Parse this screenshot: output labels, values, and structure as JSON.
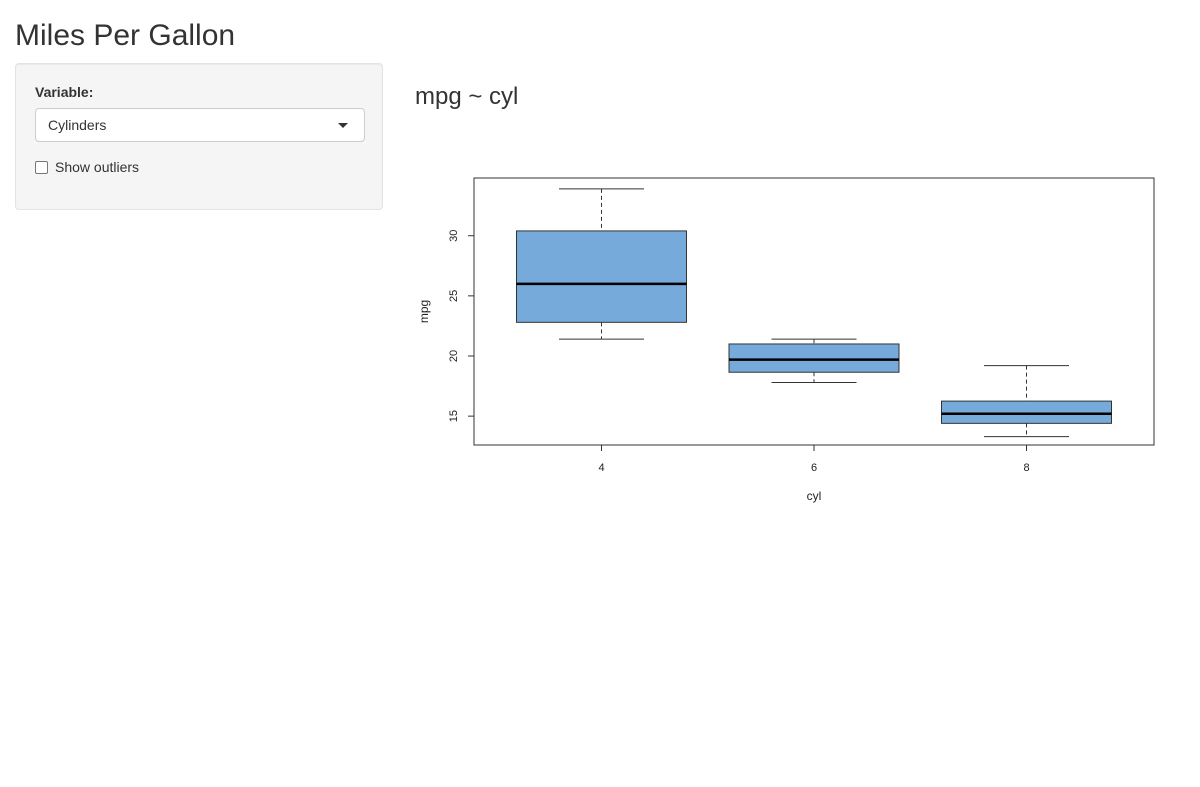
{
  "title": "Miles Per Gallon",
  "sidebar": {
    "variable_label": "Variable:",
    "variable_selected": "Cylinders",
    "outliers_label": "Show outliers",
    "outliers_checked": false
  },
  "main": {
    "caption": "mpg ~ cyl"
  },
  "colors": {
    "box_fill": "#75AADB",
    "panel_bg": "#f5f5f5",
    "text": "#333333"
  },
  "chart_data": {
    "type": "boxplot",
    "title": "",
    "xlabel": "cyl",
    "ylabel": "mpg",
    "categories": [
      "4",
      "6",
      "8"
    ],
    "yticks": [
      15,
      20,
      25,
      30
    ],
    "ylim": [
      12.6,
      34.8
    ],
    "boxes": [
      {
        "category": "4",
        "min": 21.4,
        "q1": 22.8,
        "median": 26.0,
        "q3": 30.4,
        "max": 33.9
      },
      {
        "category": "6",
        "min": 17.8,
        "q1": 18.65,
        "median": 19.7,
        "q3": 21.0,
        "max": 21.4
      },
      {
        "category": "8",
        "min": 13.3,
        "q1": 14.4,
        "median": 15.2,
        "q3": 16.25,
        "max": 19.2
      }
    ],
    "grid": false,
    "outliers_shown": false
  }
}
